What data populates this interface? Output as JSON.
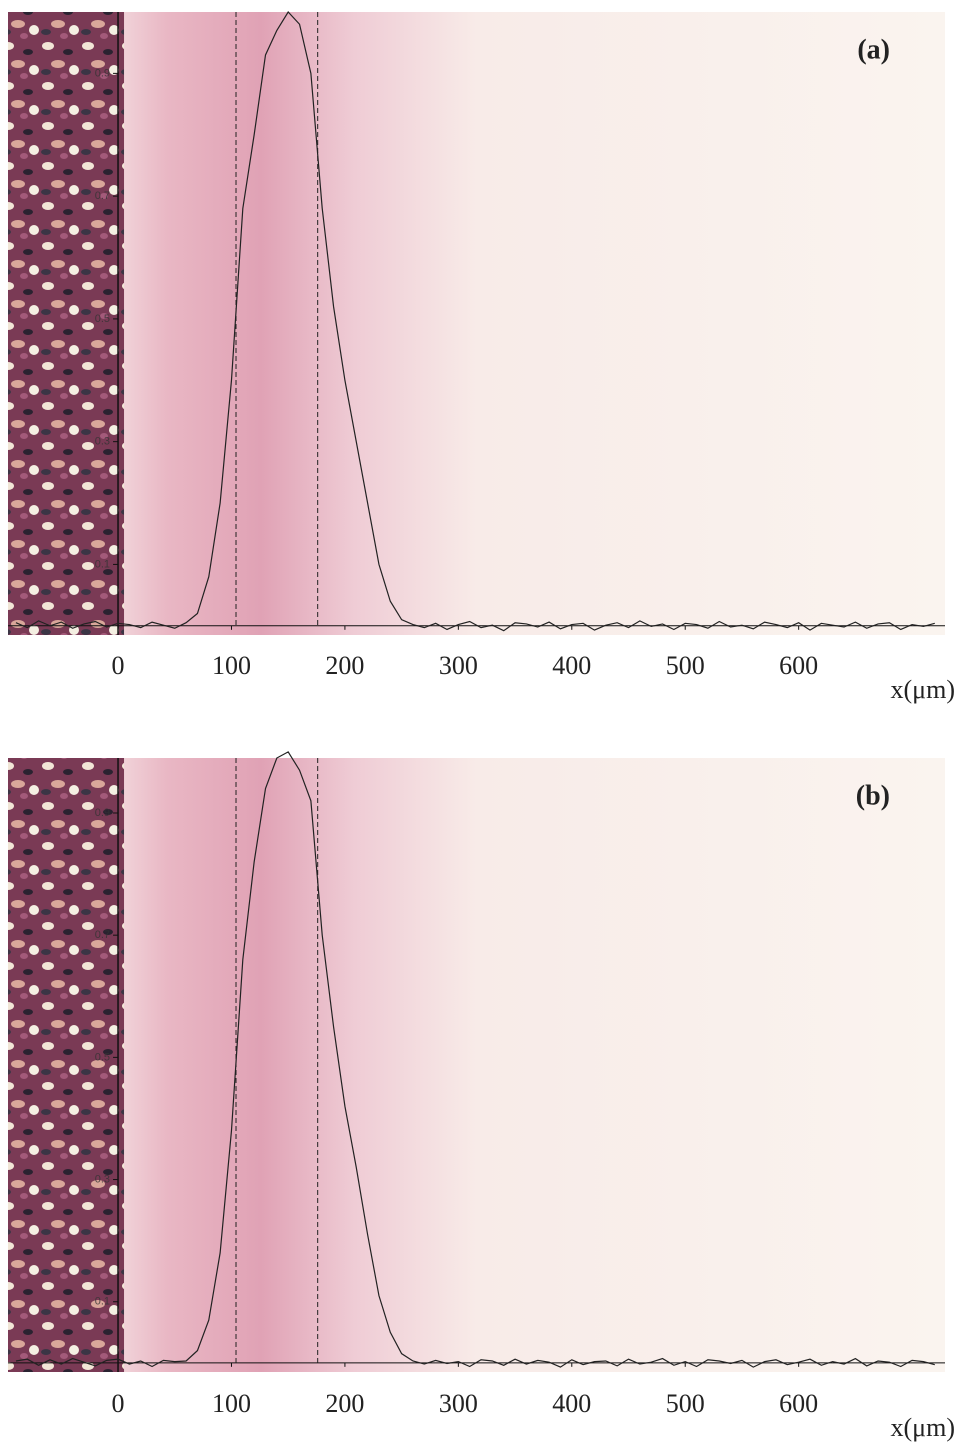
{
  "chart_data": [
    {
      "type": "line",
      "title": "(a)",
      "xlabel": "x(μm)",
      "x": [
        -90,
        -80,
        -70,
        -60,
        -50,
        -40,
        -30,
        -20,
        -10,
        0,
        10,
        20,
        30,
        40,
        50,
        60,
        70,
        80,
        90,
        100,
        110,
        120,
        130,
        140,
        150,
        160,
        170,
        180,
        190,
        200,
        210,
        220,
        230,
        240,
        250,
        260,
        270,
        280,
        290,
        300,
        310,
        320,
        330,
        340,
        350,
        360,
        370,
        380,
        390,
        400,
        410,
        420,
        430,
        440,
        450,
        460,
        470,
        480,
        490,
        500,
        510,
        520,
        530,
        540,
        550,
        560,
        570,
        580,
        590,
        600,
        610,
        620,
        630,
        640,
        650,
        660,
        670,
        680,
        690,
        700,
        710,
        720
      ],
      "series": [
        {
          "color": "#222222",
          "values": [
            0.005,
            -0.003,
            0.008,
            0,
            0.006,
            -0.004,
            0.003,
            0.007,
            -0.002,
            0.004,
            0.002,
            -0.003,
            0.006,
            0.001,
            -0.004,
            0.005,
            0.02,
            0.08,
            0.2,
            0.4,
            0.68,
            0.8,
            0.93,
            0.97,
            1.0,
            0.98,
            0.9,
            0.68,
            0.52,
            0.4,
            0.3,
            0.2,
            0.1,
            0.04,
            0.01,
            0.002,
            -0.003,
            0.004,
            -0.006,
            0.002,
            0.007,
            -0.003,
            0.001,
            -0.008,
            0.005,
            0.003,
            -0.002,
            0.006,
            -0.005,
            0.002,
            0.004,
            -0.007,
            0.001,
            0.005,
            -0.003,
            0.008,
            -0.001,
            0.003,
            -0.006,
            0.004,
            0.002,
            -0.004,
            0.007,
            -0.002,
            0.001,
            -0.005,
            0.006,
            0.002,
            -0.003,
            0.005,
            -0.007,
            0.004,
            0.001,
            -0.002,
            0.006,
            -0.004,
            0.003,
            0.005,
            -0.006,
            0.002,
            -0.001,
            0.004
          ]
        }
      ],
      "vlines": [
        104,
        176
      ],
      "xlim": [
        -97,
        729
      ],
      "ylim": [
        -0.015,
        1.0
      ],
      "xticks": [
        0,
        100,
        200,
        300,
        400,
        500,
        600
      ],
      "yticks": [
        0.1,
        0.3,
        0.5,
        0.7,
        0.9
      ]
    },
    {
      "type": "line",
      "title": "(b)",
      "xlabel": "x(μm)",
      "x": [
        -90,
        -80,
        -70,
        -60,
        -50,
        -40,
        -30,
        -20,
        -10,
        0,
        10,
        20,
        30,
        40,
        50,
        60,
        70,
        80,
        90,
        100,
        110,
        120,
        130,
        140,
        150,
        160,
        170,
        180,
        190,
        200,
        210,
        220,
        230,
        240,
        250,
        260,
        270,
        280,
        290,
        300,
        310,
        320,
        330,
        340,
        350,
        360,
        370,
        380,
        390,
        400,
        410,
        420,
        430,
        440,
        450,
        460,
        470,
        480,
        490,
        500,
        510,
        520,
        530,
        540,
        550,
        560,
        570,
        580,
        590,
        600,
        610,
        620,
        630,
        640,
        650,
        660,
        670,
        680,
        690,
        700,
        710,
        720
      ],
      "series": [
        {
          "color": "#222222",
          "values": [
            0.003,
            0.006,
            -0.004,
            0.005,
            -0.002,
            0.007,
            0.001,
            -0.005,
            0.004,
            0.006,
            -0.002,
            0.003,
            -0.006,
            0.004,
            0.002,
            0.003,
            0.02,
            0.07,
            0.18,
            0.38,
            0.66,
            0.82,
            0.94,
            0.99,
            1.0,
            0.97,
            0.92,
            0.7,
            0.55,
            0.42,
            0.32,
            0.21,
            0.11,
            0.05,
            0.015,
            0.003,
            -0.002,
            0.004,
            -0.001,
            0.002,
            -0.006,
            0.005,
            0.003,
            -0.004,
            0.006,
            -0.002,
            0.004,
            0.001,
            -0.007,
            0.005,
            -0.003,
            0.002,
            0.003,
            -0.005,
            0.006,
            -0.002,
            0.001,
            0.007,
            -0.004,
            0.002,
            -0.006,
            0.005,
            0.003,
            -0.001,
            0.004,
            -0.007,
            0.002,
            0.005,
            -0.003,
            0.001,
            0.006,
            -0.004,
            0.002,
            -0.002,
            0.007,
            -0.005,
            0.003,
            0.001,
            -0.006,
            0.004,
            0.002,
            -0.003
          ]
        }
      ],
      "vlines": [
        104,
        176
      ],
      "xlim": [
        -97,
        729
      ],
      "ylim": [
        -0.015,
        0.99
      ],
      "xticks": [
        0,
        100,
        200,
        300,
        400,
        500,
        600
      ],
      "yticks": [
        0.1,
        0.3,
        0.5,
        0.7,
        0.9
      ]
    }
  ]
}
